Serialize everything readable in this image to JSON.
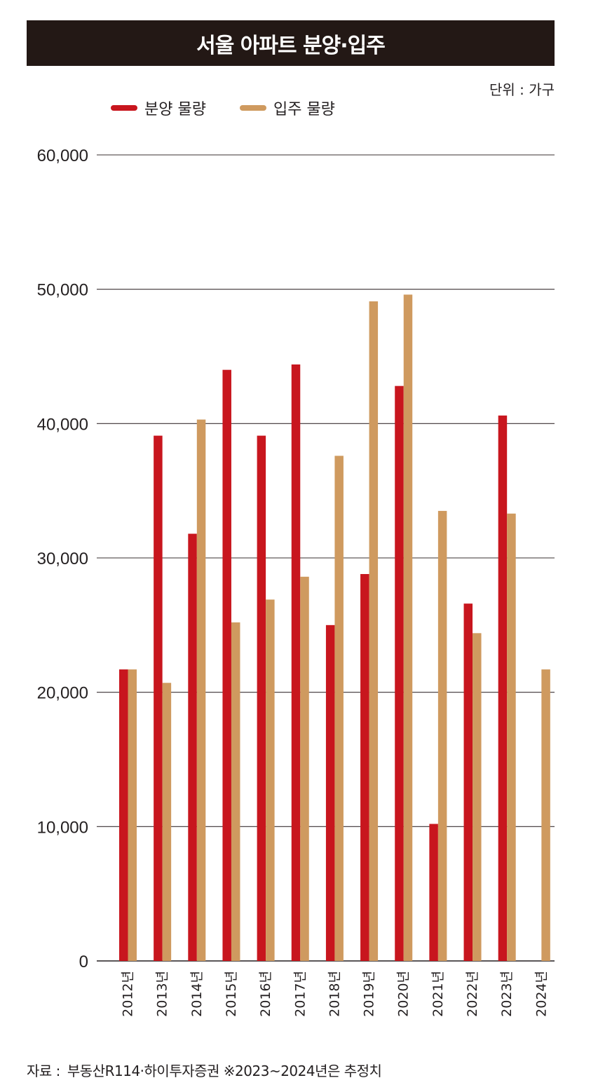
{
  "title": "서울 아파트 분양·입주",
  "unit": "단위 : 가구",
  "source": {
    "label": "자료 :",
    "text": "부동산R114·하이투자증권 ※2023~2024년은 추정치"
  },
  "colors": {
    "title_bg": "#231815",
    "supply": "#c8161e",
    "move_in": "#cf9a5f",
    "grid": "#231f20"
  },
  "chart_data": {
    "type": "bar",
    "categories": [
      "2012년",
      "2013년",
      "2014년",
      "2015년",
      "2016년",
      "2017년",
      "2018년",
      "2019년",
      "2020년",
      "2021년",
      "2022년",
      "2023년",
      "2024년"
    ],
    "series": [
      {
        "name": "분양 물량",
        "color": "#c8161e",
        "values": [
          21700,
          39100,
          31800,
          44000,
          39100,
          44400,
          25000,
          28800,
          42800,
          10200,
          26600,
          40600,
          null
        ]
      },
      {
        "name": "입주 물량",
        "color": "#cf9a5f",
        "values": [
          21700,
          20700,
          40300,
          25200,
          26900,
          28600,
          37600,
          49100,
          49600,
          33500,
          24400,
          33300,
          21700
        ]
      }
    ],
    "ylim": [
      0,
      60000
    ],
    "yticks": [
      0,
      10000,
      20000,
      30000,
      40000,
      50000,
      60000
    ],
    "ytick_labels": [
      "0",
      "10,000",
      "20,000",
      "30,000",
      "40,000",
      "50,000",
      "60,000"
    ],
    "grid": true,
    "legend_position": "top-left"
  }
}
